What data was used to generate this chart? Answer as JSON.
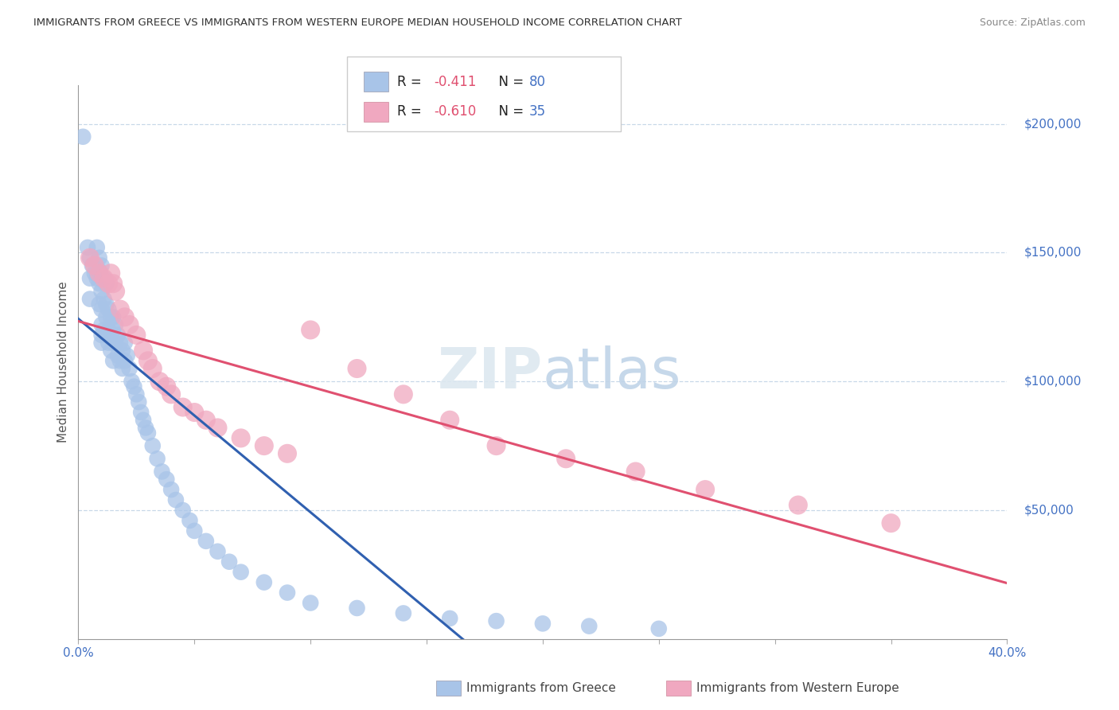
{
  "title": "IMMIGRANTS FROM GREECE VS IMMIGRANTS FROM WESTERN EUROPE MEDIAN HOUSEHOLD INCOME CORRELATION CHART",
  "source": "Source: ZipAtlas.com",
  "ylabel": "Median Household Income",
  "xlim": [
    0.0,
    0.4
  ],
  "ylim": [
    0,
    215000
  ],
  "legend1_R": "-0.411",
  "legend1_N": "80",
  "legend2_R": "-0.610",
  "legend2_N": "35",
  "series1_color": "#a8c4e8",
  "series2_color": "#f0a8c0",
  "line1_color": "#3060b0",
  "line2_color": "#e05070",
  "greece_x": [
    0.002,
    0.004,
    0.005,
    0.005,
    0.005,
    0.006,
    0.007,
    0.008,
    0.008,
    0.009,
    0.009,
    0.009,
    0.009,
    0.01,
    0.01,
    0.01,
    0.01,
    0.01,
    0.01,
    0.01,
    0.011,
    0.011,
    0.011,
    0.012,
    0.012,
    0.012,
    0.012,
    0.013,
    0.013,
    0.013,
    0.014,
    0.014,
    0.014,
    0.015,
    0.015,
    0.015,
    0.015,
    0.016,
    0.016,
    0.017,
    0.017,
    0.018,
    0.018,
    0.019,
    0.019,
    0.02,
    0.02,
    0.021,
    0.022,
    0.023,
    0.024,
    0.025,
    0.026,
    0.027,
    0.028,
    0.029,
    0.03,
    0.032,
    0.034,
    0.036,
    0.038,
    0.04,
    0.042,
    0.045,
    0.048,
    0.05,
    0.055,
    0.06,
    0.065,
    0.07,
    0.08,
    0.09,
    0.1,
    0.12,
    0.14,
    0.16,
    0.18,
    0.2,
    0.22,
    0.25
  ],
  "greece_y": [
    195000,
    152000,
    148000,
    140000,
    132000,
    145000,
    142000,
    152000,
    140000,
    148000,
    143000,
    138000,
    130000,
    145000,
    140000,
    135000,
    128000,
    122000,
    118000,
    115000,
    140000,
    132000,
    120000,
    138000,
    130000,
    125000,
    118000,
    128000,
    120000,
    115000,
    125000,
    118000,
    112000,
    125000,
    120000,
    115000,
    108000,
    122000,
    115000,
    118000,
    110000,
    115000,
    108000,
    112000,
    105000,
    115000,
    108000,
    110000,
    105000,
    100000,
    98000,
    95000,
    92000,
    88000,
    85000,
    82000,
    80000,
    75000,
    70000,
    65000,
    62000,
    58000,
    54000,
    50000,
    46000,
    42000,
    38000,
    34000,
    30000,
    26000,
    22000,
    18000,
    14000,
    12000,
    10000,
    8000,
    7000,
    6000,
    5000,
    4000
  ],
  "western_x": [
    0.005,
    0.007,
    0.009,
    0.011,
    0.013,
    0.014,
    0.015,
    0.016,
    0.018,
    0.02,
    0.022,
    0.025,
    0.028,
    0.03,
    0.032,
    0.035,
    0.038,
    0.04,
    0.045,
    0.05,
    0.055,
    0.06,
    0.07,
    0.08,
    0.09,
    0.1,
    0.12,
    0.14,
    0.16,
    0.18,
    0.21,
    0.24,
    0.27,
    0.31,
    0.35
  ],
  "western_y": [
    148000,
    145000,
    142000,
    140000,
    138000,
    142000,
    138000,
    135000,
    128000,
    125000,
    122000,
    118000,
    112000,
    108000,
    105000,
    100000,
    98000,
    95000,
    90000,
    88000,
    85000,
    82000,
    78000,
    75000,
    72000,
    120000,
    105000,
    95000,
    85000,
    75000,
    70000,
    65000,
    58000,
    52000,
    45000
  ]
}
